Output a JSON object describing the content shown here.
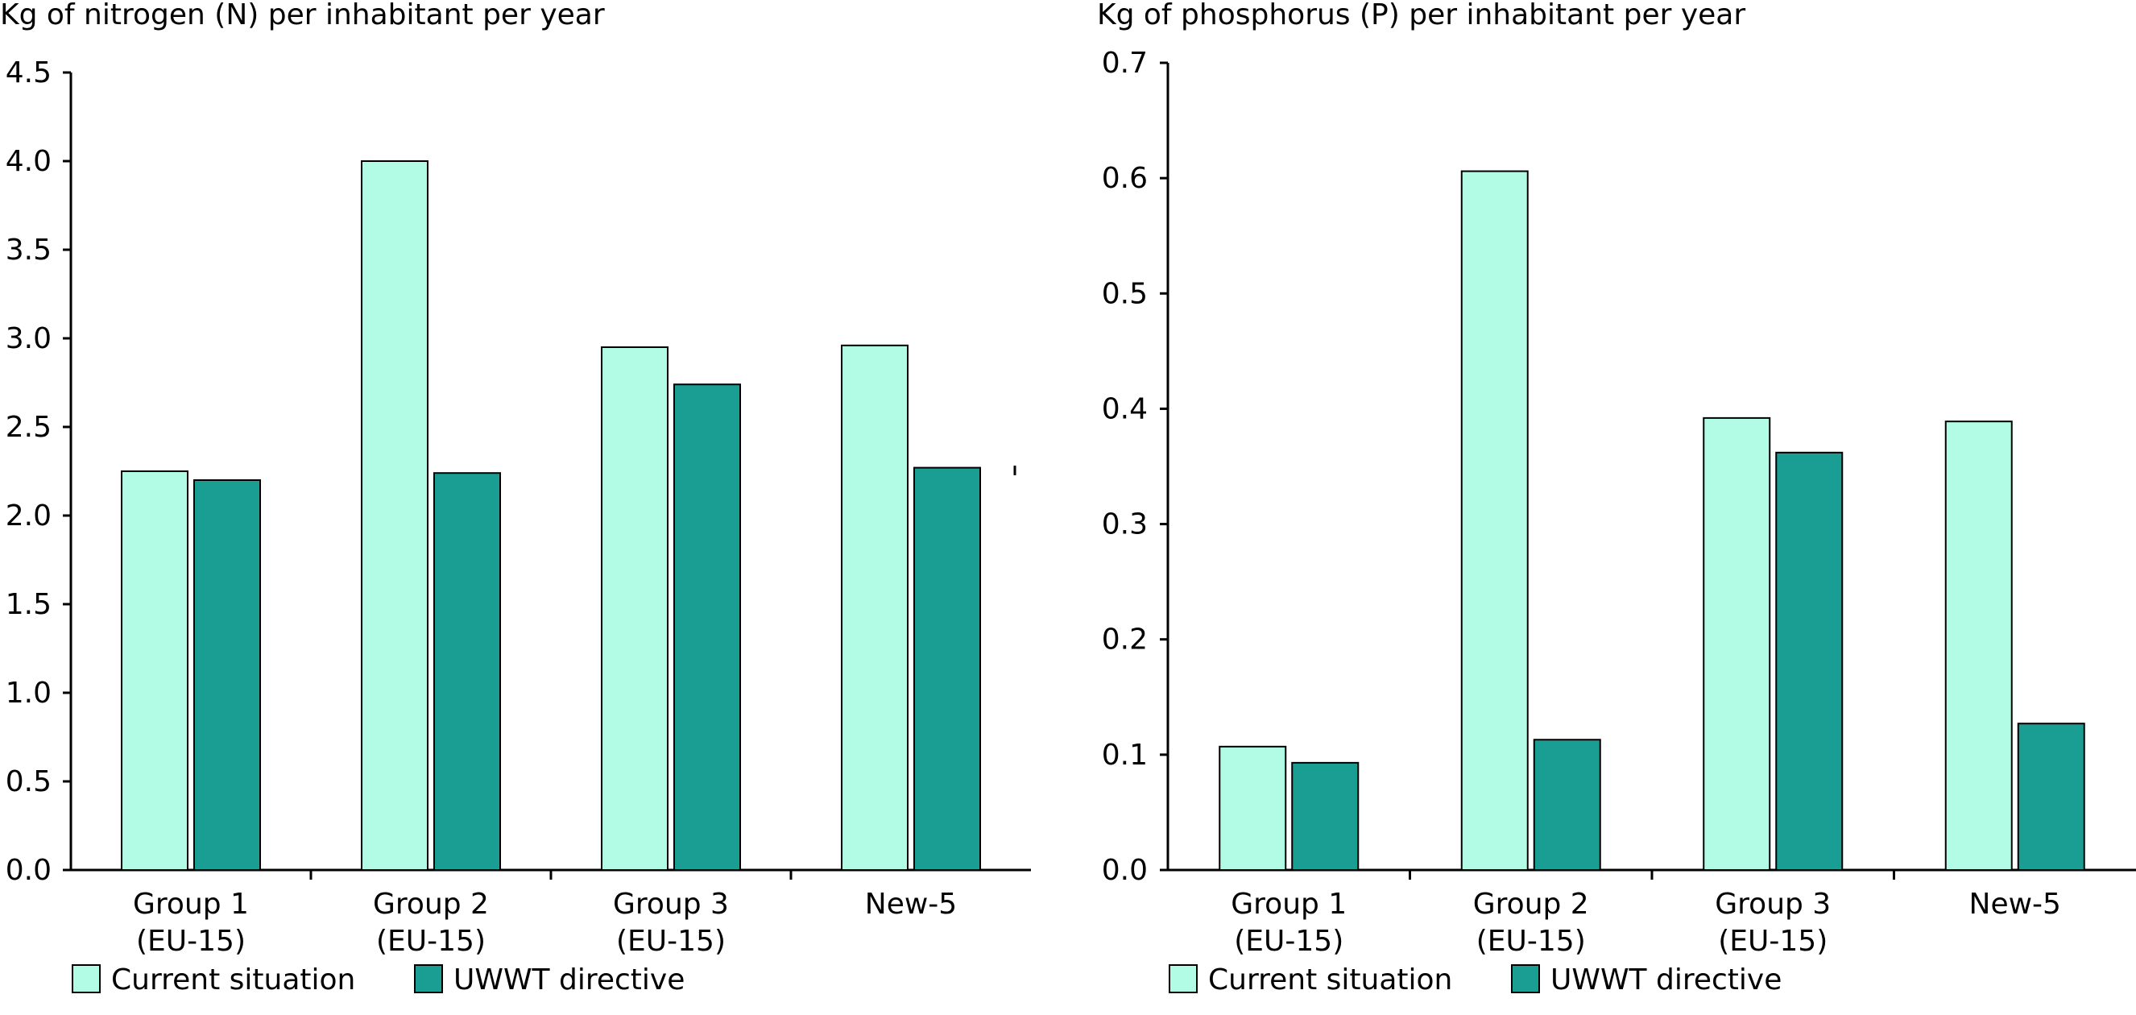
{
  "colors": {
    "current": "#b2fce6",
    "directive": "#1a9e94",
    "outline": "#000000"
  },
  "legend": {
    "current": "Current situation",
    "directive": "UWWT directive"
  },
  "chart_data": [
    {
      "type": "bar",
      "ylabel": "Kg of nitrogen (N) per inhabitant per year",
      "ylim": [
        0,
        4.5
      ],
      "yticks": [
        "0.0",
        "0.5",
        "1.0",
        "1.5",
        "2.0",
        "2.5",
        "3.0",
        "3.5",
        "4.0",
        "4.5"
      ],
      "categories": [
        [
          "Group 1",
          "(EU-15)"
        ],
        [
          "Group 2",
          "(EU-15)"
        ],
        [
          "Group 3",
          "(EU-15)"
        ],
        [
          "New-5"
        ]
      ],
      "series": [
        {
          "name": "Current situation",
          "values": [
            2.25,
            4.0,
            2.95,
            2.96
          ]
        },
        {
          "name": "UWWT directive",
          "values": [
            2.2,
            2.24,
            2.74,
            2.27
          ]
        }
      ]
    },
    {
      "type": "bar",
      "ylabel": "Kg of phosphorus (P) per inhabitant per year",
      "ylim": [
        0,
        0.7
      ],
      "yticks": [
        "0.0",
        "0.1",
        "0.2",
        "0.3",
        "0.4",
        "0.5",
        "0.6",
        "0.7"
      ],
      "categories": [
        [
          "Group 1",
          "(EU-15)"
        ],
        [
          "Group 2",
          "(EU-15)"
        ],
        [
          "Group 3",
          "(EU-15)"
        ],
        [
          "New-5"
        ]
      ],
      "series": [
        {
          "name": "Current situation",
          "values": [
            0.107,
            0.606,
            0.392,
            0.389
          ]
        },
        {
          "name": "UWWT directive",
          "values": [
            0.093,
            0.113,
            0.362,
            0.127
          ]
        }
      ]
    }
  ]
}
